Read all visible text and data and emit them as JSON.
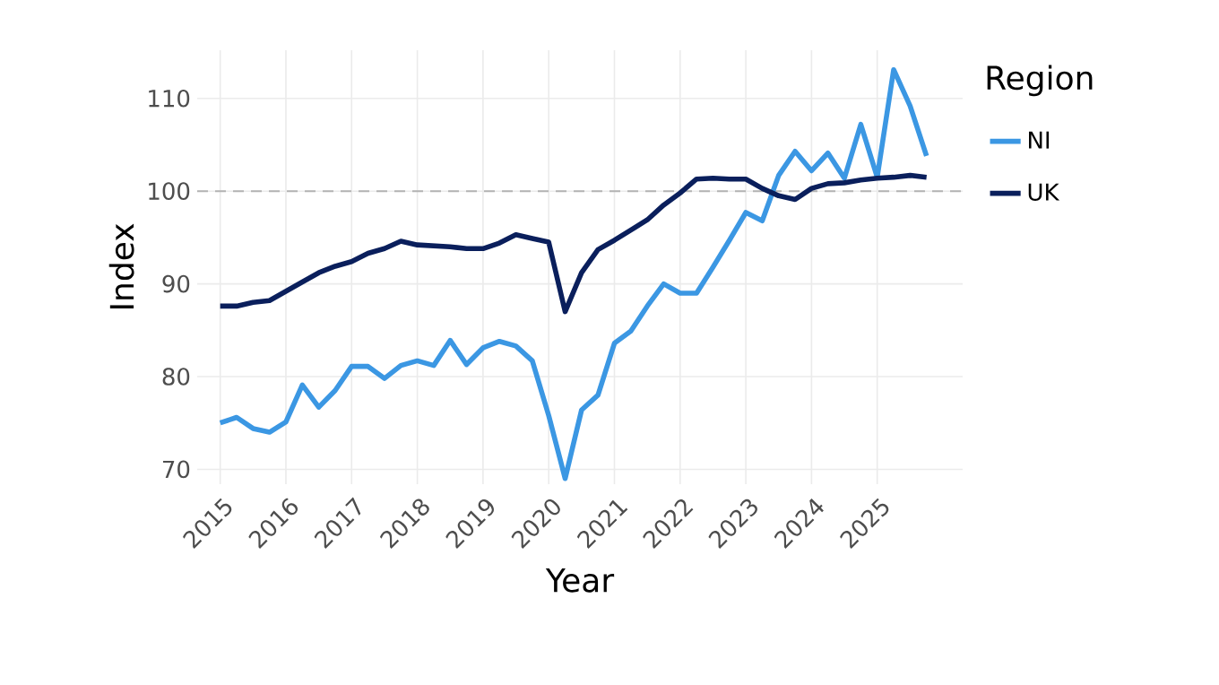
{
  "chart_data": {
    "type": "line",
    "xlabel": "Year",
    "ylabel": "Index",
    "legend_title": "Region",
    "x": [
      2015,
      2015.25,
      2015.5,
      2015.75,
      2016,
      2016.25,
      2016.5,
      2016.75,
      2017,
      2017.25,
      2017.5,
      2017.75,
      2018,
      2018.25,
      2018.5,
      2018.75,
      2019,
      2019.25,
      2019.5,
      2019.75,
      2020,
      2020.25,
      2020.5,
      2020.75,
      2021,
      2021.25,
      2021.5,
      2021.75,
      2022,
      2022.25,
      2022.5,
      2022.75,
      2023,
      2023.25,
      2023.5,
      2023.75,
      2024,
      2024.25,
      2024.5,
      2024.75,
      2025,
      2025.25,
      2025.5,
      2025.75
    ],
    "series": [
      {
        "name": "NI",
        "color": "#3b97e3",
        "values": [
          75.0,
          75.6,
          74.4,
          74.0,
          75.1,
          79.1,
          76.7,
          78.5,
          81.1,
          81.1,
          79.8,
          81.2,
          81.7,
          81.2,
          83.9,
          81.3,
          83.1,
          83.8,
          83.3,
          81.7,
          75.8,
          69.0,
          76.4,
          78.0,
          83.6,
          84.9,
          87.6,
          90.0,
          89.0,
          89.0,
          91.8,
          94.7,
          97.7,
          96.8,
          101.7,
          104.3,
          102.2,
          104.1,
          101.4,
          107.2,
          101.5,
          113.1,
          109.2,
          103.8
        ]
      },
      {
        "name": "UK",
        "color": "#0a1f5c",
        "values": [
          87.6,
          87.6,
          88.0,
          88.2,
          89.2,
          90.2,
          91.2,
          91.9,
          92.4,
          93.3,
          93.8,
          94.6,
          94.2,
          94.1,
          94.0,
          93.8,
          93.8,
          94.4,
          95.3,
          94.9,
          94.5,
          87.0,
          91.2,
          93.7,
          94.7,
          95.8,
          96.9,
          98.5,
          99.8,
          101.3,
          101.4,
          101.3,
          101.3,
          100.3,
          99.5,
          99.1,
          100.3,
          100.8,
          100.9,
          101.2,
          101.4,
          101.5,
          101.7,
          101.5
        ]
      }
    ],
    "xlim": [
      2014.65,
      2026.3
    ],
    "ylim": [
      68.4,
      115.2
    ],
    "xticks": [
      2015,
      2016,
      2017,
      2018,
      2019,
      2020,
      2021,
      2022,
      2023,
      2024,
      2025
    ],
    "yticks": [
      70,
      80,
      90,
      100,
      110
    ],
    "ref_lines": [
      {
        "axis": "y",
        "value": 100,
        "color": "#b3b3b3",
        "line_style": "dashed"
      }
    ],
    "grid": true,
    "legend": "right"
  }
}
